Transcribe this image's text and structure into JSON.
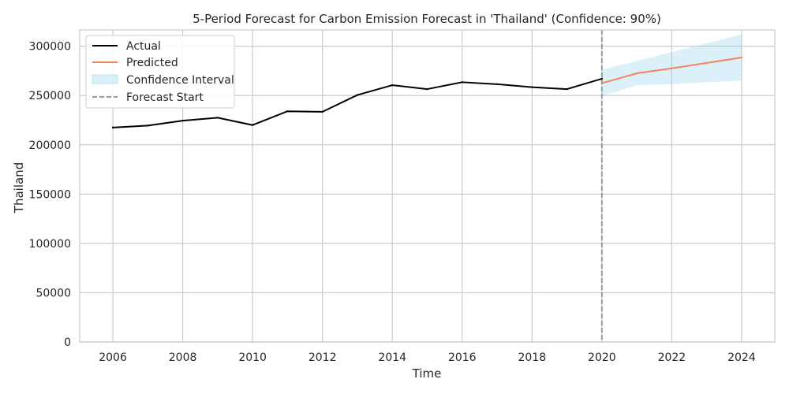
{
  "chart_data": {
    "type": "line",
    "title": "5-Period Forecast for Carbon Emission Forecast in 'Thailand' (Confidence: 90%)",
    "xlabel": "Time",
    "ylabel": "Thailand",
    "xlim": [
      2005.05,
      2024.95
    ],
    "ylim": [
      0,
      316500
    ],
    "x_ticks": [
      "2006",
      "2008",
      "2010",
      "2012",
      "2014",
      "2016",
      "2018",
      "2020",
      "2022",
      "2024"
    ],
    "y_ticks": [
      "0",
      "50000",
      "100000",
      "150000",
      "200000",
      "250000",
      "300000"
    ],
    "grid": true,
    "legend_position": "top-left",
    "series": [
      {
        "name": "Actual",
        "color": "#000000",
        "x": [
          2006,
          2007,
          2008,
          2009,
          2010,
          2011,
          2012,
          2013,
          2014,
          2015,
          2016,
          2017,
          2018,
          2019,
          2020
        ],
        "y": [
          217500,
          219500,
          224500,
          227500,
          220000,
          234000,
          233500,
          250500,
          260500,
          256500,
          263500,
          261500,
          258500,
          256500,
          267000
        ]
      },
      {
        "name": "Predicted",
        "color": "#f4845f",
        "x": [
          2020,
          2021,
          2022,
          2023,
          2024
        ],
        "y": [
          262500,
          272500,
          277500,
          283000,
          288500
        ]
      }
    ],
    "confidence_interval": {
      "name": "Confidence Interval",
      "color": "#87ceeb",
      "x": [
        2020,
        2021,
        2022,
        2023,
        2024
      ],
      "lower": [
        249500,
        260500,
        261500,
        263500,
        265000
      ],
      "upper": [
        276000,
        285000,
        294000,
        303000,
        312000
      ]
    },
    "forecast_start": {
      "name": "Forecast Start",
      "x": 2020,
      "color": "#999999"
    }
  }
}
